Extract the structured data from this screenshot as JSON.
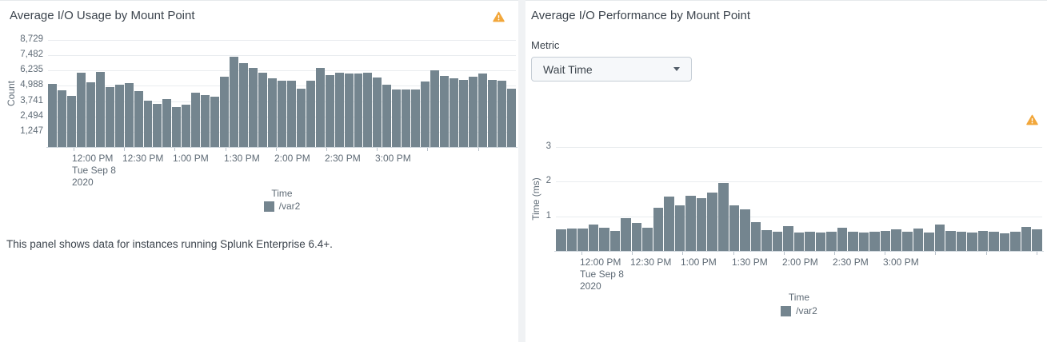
{
  "colors": {
    "bar": "#74858f",
    "warning": "#f2a73b",
    "grid": "#e9ecef"
  },
  "left_panel": {
    "title": "Average I/O Usage by Mount Point",
    "footer": "This panel shows data for instances running Splunk Enterprise 6.4+."
  },
  "right_panel": {
    "title": "Average I/O Performance by Mount Point",
    "metric_label": "Metric",
    "metric_dropdown": {
      "value": "Wait Time"
    }
  },
  "chart_data": [
    {
      "type": "bar",
      "title": "Average I/O Usage by Mount Point",
      "xlabel": "Time",
      "ylabel": "Count",
      "x_tick_labels": [
        "12:00 PM",
        "12:30 PM",
        "1:00 PM",
        "1:30 PM",
        "2:00 PM",
        "2:30 PM",
        "3:00 PM"
      ],
      "x_first_tick_sublabels": [
        "Tue Sep 8",
        "2020"
      ],
      "y_tick_labels": [
        "1,247",
        "2,494",
        "3,741",
        "4,988",
        "6,235",
        "7,482",
        "8,729"
      ],
      "y_tick_values": [
        1247,
        2494,
        3741,
        4988,
        6235,
        7482,
        8729
      ],
      "ylim": [
        0,
        8729
      ],
      "grid": "horizontal",
      "legend_position": "bottom",
      "series": [
        {
          "name": "/var2",
          "color": "#74858f",
          "values": [
            5170,
            4650,
            4200,
            6070,
            5300,
            6140,
            4910,
            5100,
            5230,
            4590,
            3810,
            3550,
            3880,
            3230,
            3420,
            4460,
            4260,
            4130,
            5750,
            7370,
            6850,
            6460,
            6070,
            5620,
            5430,
            5430,
            4780,
            5430,
            6460,
            5880,
            6070,
            6000,
            6000,
            6070,
            5690,
            5100,
            4720,
            4720,
            4720,
            5360,
            6270,
            5810,
            5620,
            5490,
            5750,
            6000,
            5490,
            5430,
            4780
          ]
        }
      ]
    },
    {
      "type": "bar",
      "title": "Average I/O Performance by Mount Point",
      "xlabel": "Time",
      "ylabel": "Time (ms)",
      "x_tick_labels": [
        "12:00 PM",
        "12:30 PM",
        "1:00 PM",
        "1:30 PM",
        "2:00 PM",
        "2:30 PM",
        "3:00 PM"
      ],
      "x_first_tick_sublabels": [
        "Tue Sep 8",
        "2020"
      ],
      "y_tick_labels": [
        "1",
        "2",
        "3"
      ],
      "y_tick_values": [
        1,
        2,
        3
      ],
      "ylim": [
        0,
        3
      ],
      "grid": "horizontal",
      "legend_position": "bottom",
      "series": [
        {
          "name": "/var2",
          "color": "#74858f",
          "values": [
            0.62,
            0.65,
            0.64,
            0.75,
            0.67,
            0.58,
            0.94,
            0.81,
            0.68,
            1.25,
            1.58,
            1.31,
            1.59,
            1.52,
            1.69,
            1.95,
            1.31,
            1.21,
            0.83,
            0.59,
            0.56,
            0.72,
            0.52,
            0.55,
            0.52,
            0.55,
            0.68,
            0.55,
            0.52,
            0.55,
            0.58,
            0.62,
            0.55,
            0.65,
            0.52,
            0.75,
            0.58,
            0.55,
            0.52,
            0.58,
            0.55,
            0.5,
            0.55,
            0.7,
            0.62
          ]
        }
      ]
    }
  ]
}
